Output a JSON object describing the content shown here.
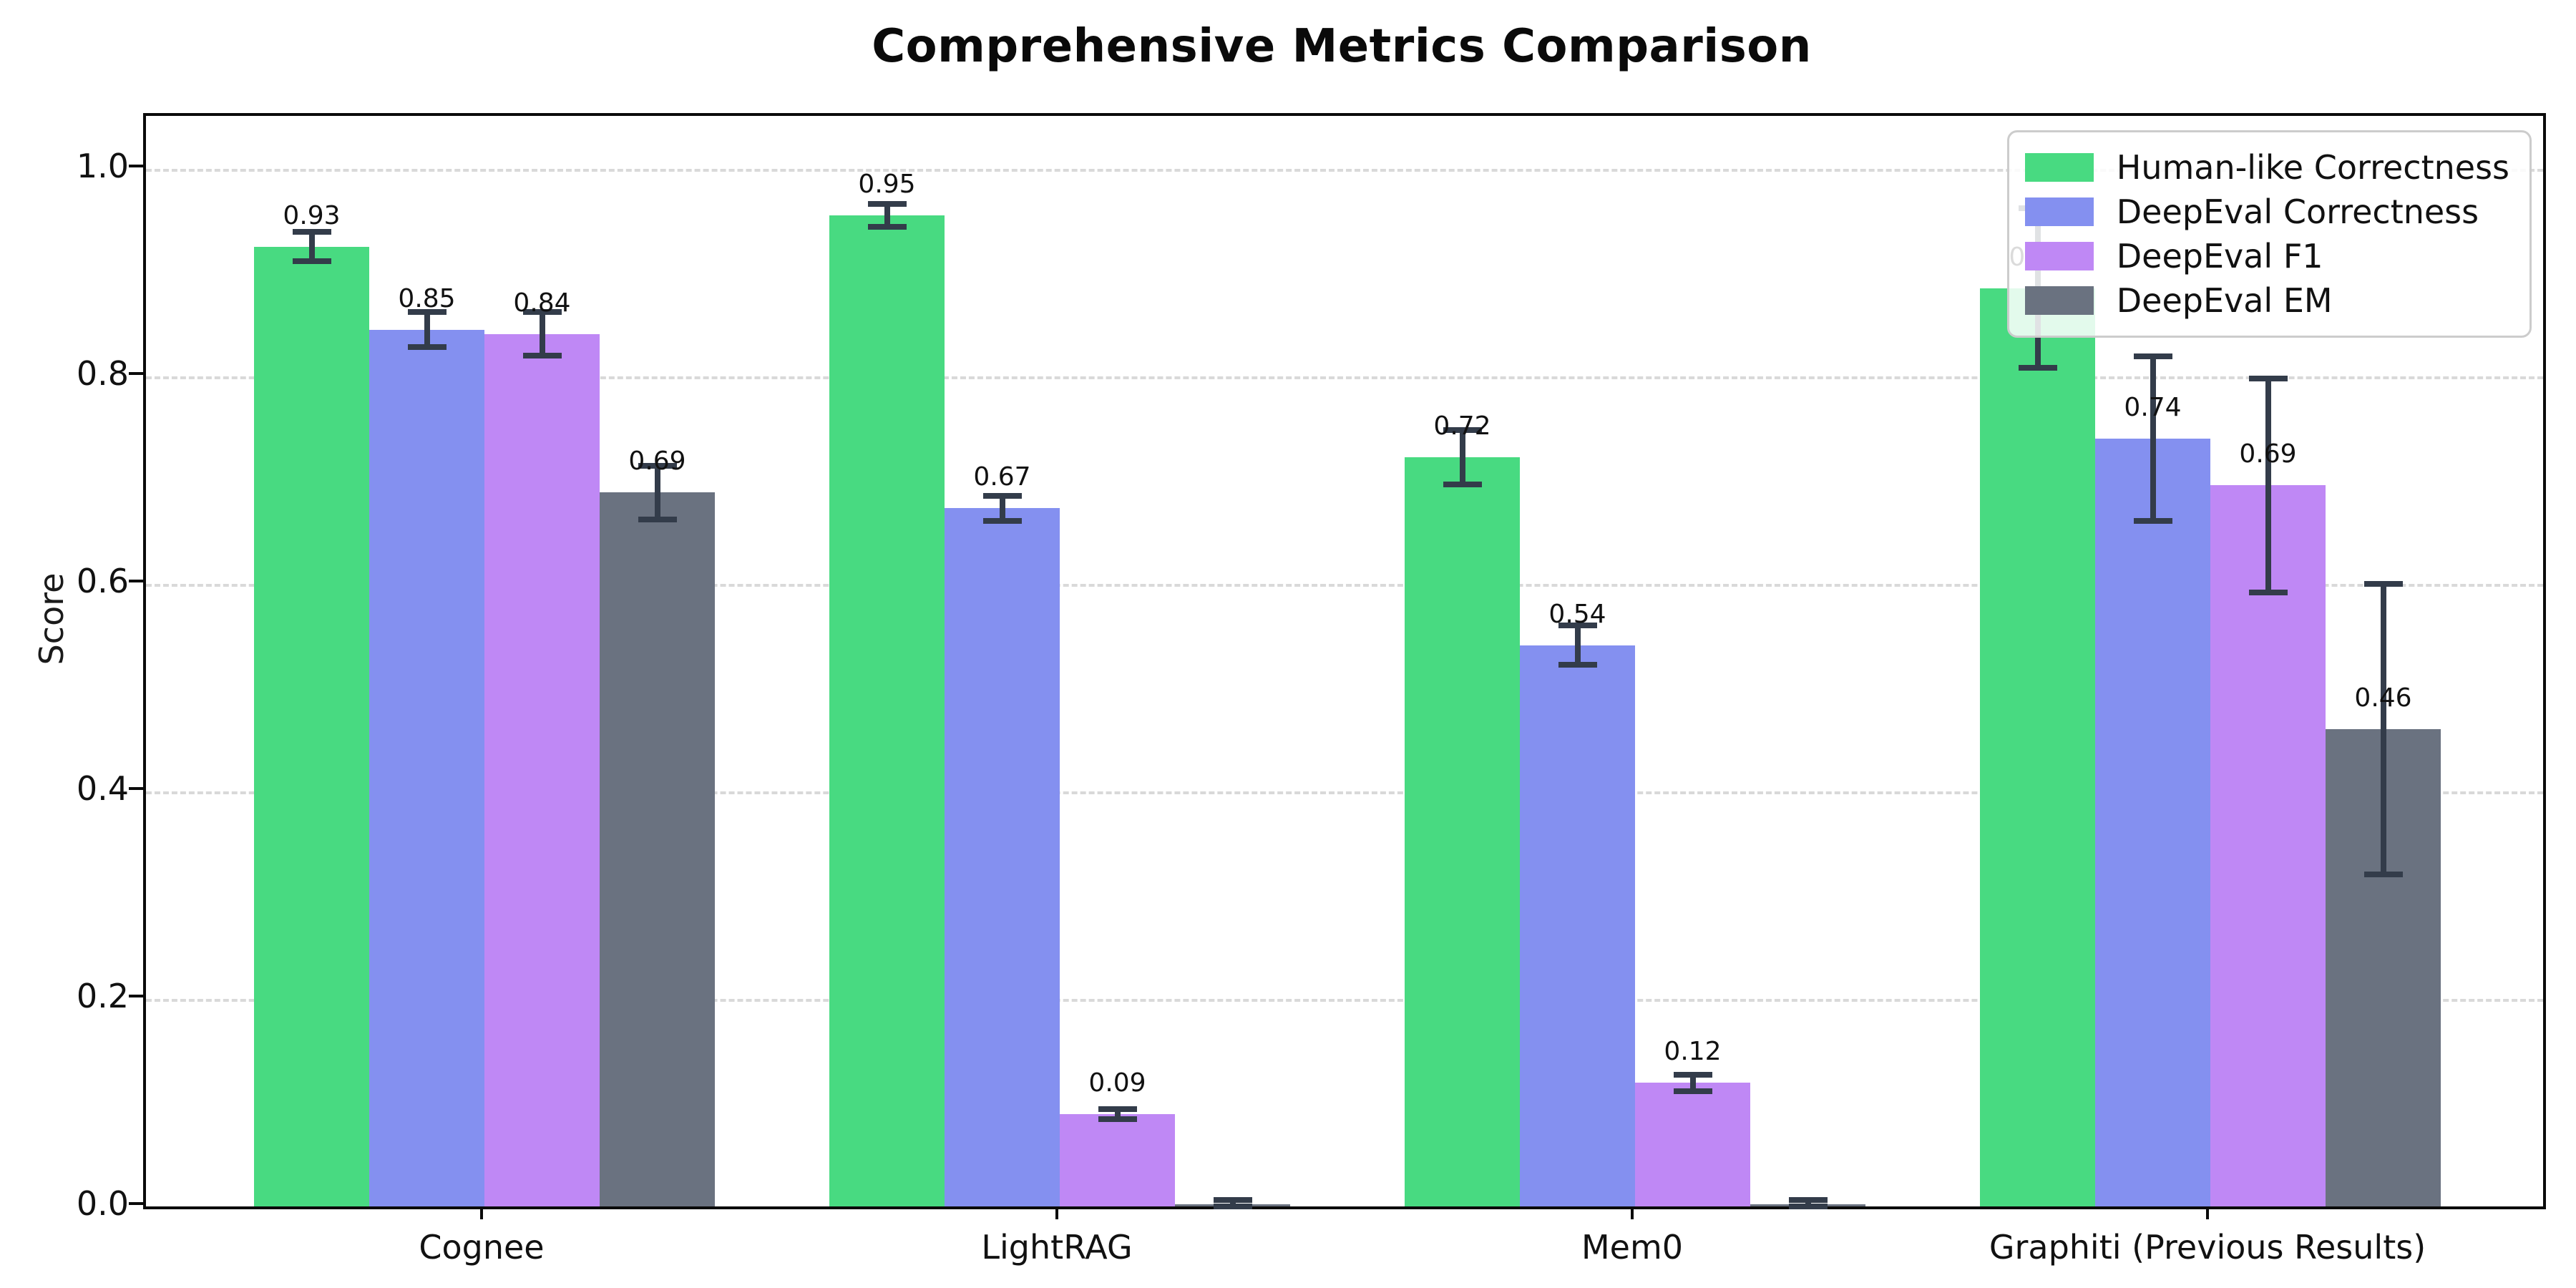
{
  "chart_data": {
    "type": "bar",
    "title": "Comprehensive Metrics Comparison",
    "ylabel": "Score",
    "xlabel": "",
    "categories": [
      "Cognee",
      "LightRAG",
      "Mem0",
      "Graphiti (Previous Results)"
    ],
    "series": [
      {
        "name": "Human-like Correctness",
        "color": "#48da81",
        "values": [
          0.925,
          0.955,
          0.722,
          0.885
        ],
        "errors": [
          0.014,
          0.011,
          0.026,
          0.077
        ],
        "labels": [
          "0.93",
          "0.95",
          "0.72",
          "0.88"
        ]
      },
      {
        "name": "DeepEval Correctness",
        "color": "#8490f0",
        "values": [
          0.845,
          0.673,
          0.541,
          0.74
        ],
        "errors": [
          0.017,
          0.012,
          0.019,
          0.079
        ],
        "labels": [
          "0.85",
          "0.67",
          "0.54",
          "0.74"
        ]
      },
      {
        "name": "DeepEval F1",
        "color": "#bf88f5",
        "values": [
          0.841,
          0.089,
          0.119,
          0.695
        ],
        "errors": [
          0.021,
          0.005,
          0.008,
          0.103
        ],
        "labels": [
          "0.84",
          "0.09",
          "0.12",
          "0.69"
        ]
      },
      {
        "name": "DeepEval EM",
        "color": "#6a7280",
        "values": [
          0.688,
          0.002,
          0.002,
          0.46
        ],
        "errors": [
          0.026,
          0.004,
          0.004,
          0.14
        ],
        "labels": [
          "0.69",
          "",
          "",
          "0.46"
        ]
      }
    ],
    "y_ticks": [
      0.0,
      0.2,
      0.4,
      0.6,
      0.8,
      1.0
    ],
    "y_tick_labels": [
      "0.0",
      "0.2",
      "0.4",
      "0.6",
      "0.8",
      "1.0"
    ],
    "ylim": [
      0,
      1.051
    ],
    "grid": "horizontal dashed at y ticks",
    "legend_position": "upper right",
    "bar_labels_visible": true
  },
  "colors": {
    "error_bar": "#333c4a",
    "grid": "#d9d9d9",
    "axis": "#0a0a0a",
    "background": "#ffffff",
    "legend_border": "#cccccc"
  }
}
